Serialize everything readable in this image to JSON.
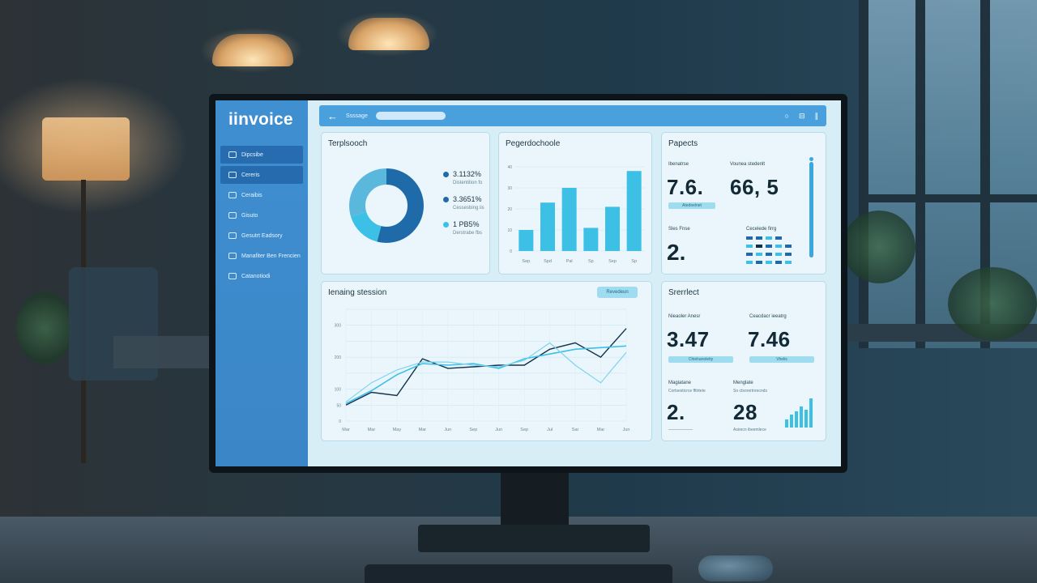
{
  "app": {
    "brand": "iinvoice",
    "top_label": "Ssssage"
  },
  "sidebar": {
    "items": [
      {
        "label": "Dipcsibe",
        "active": true
      },
      {
        "label": "Cereris",
        "active": true
      },
      {
        "label": "Ceraibis",
        "active": false
      },
      {
        "label": "Gisuto",
        "active": false
      },
      {
        "label": "Gesutrt Eadsory",
        "active": false
      },
      {
        "label": "Manafiter Ben Frencien",
        "active": false
      },
      {
        "label": "Catanotiodi",
        "active": false
      }
    ]
  },
  "donut_card": {
    "title": "Terplsooch",
    "legend": [
      {
        "value": "3.1132%",
        "sub": "Distentition fo",
        "color": "#1f6aa8"
      },
      {
        "value": "3.3651%",
        "sub": "Cessesbing iis",
        "color": "#1f6aa8"
      },
      {
        "value": "1 PB5%",
        "sub": "Derstrabe fbs",
        "color": "#3cc0e6"
      }
    ]
  },
  "bar_card": {
    "title": "Pegerdochoole"
  },
  "stats_card": {
    "title": "Papects",
    "labels": [
      "Ibenatrse",
      "Vounea stedenlt",
      "Sles Fnse",
      "Cecelede firrg"
    ],
    "big1": "7.6.",
    "big2": "66, 5",
    "med": "2.",
    "pill": "Atedeelnet"
  },
  "line_card": {
    "title": "Ienaing stession",
    "chip": "Revedeun"
  },
  "stats_card2": {
    "title": "Srerrlect",
    "labels": [
      "Nieaoler Anesr",
      "Ceacdacr ieeatrg",
      "Magiatane",
      "Menglate"
    ],
    "v1": "3.47",
    "v2": "7.46",
    "v3": "2.",
    "v4": "28",
    "pill1": "Chiehanoletiy",
    "pill2": "Vhelis",
    "sub3": "Cortsesticrce ffitrtete",
    "sub4": "So ctsorertnrecnds",
    "sub4b": "Asirecn ibeemlece"
  },
  "chart_data": [
    {
      "type": "pie",
      "title": "Terplsooch",
      "categories": [
        "3.1132%",
        "3.3651%",
        "1 PB5%"
      ],
      "values": [
        54,
        16,
        30
      ],
      "colors": [
        "#1f6aa8",
        "#3cc0e6",
        "#5bb8dd"
      ]
    },
    {
      "type": "bar",
      "title": "Pegerdochoole",
      "categories": [
        "Sep",
        "Spd",
        "Pal",
        "Sp",
        "Sep",
        "Sp"
      ],
      "values": [
        10,
        23,
        30,
        11,
        21,
        38
      ],
      "ylim": [
        0,
        40
      ]
    },
    {
      "type": "line",
      "title": "Ienaing stession",
      "categories": [
        "Mar",
        "Mar",
        "May",
        "Mar",
        "Jun",
        "Sep",
        "Jun",
        "Sep",
        "Jul",
        "Sar",
        "Mar",
        "Jun"
      ],
      "series": [
        {
          "values": [
            50,
            90,
            80,
            195,
            165,
            170,
            175,
            175,
            225,
            245,
            200,
            290
          ]
        },
        {
          "values": [
            55,
            95,
            145,
            180,
            175,
            180,
            165,
            195,
            210,
            225,
            230,
            235
          ]
        },
        {
          "values": [
            60,
            120,
            160,
            185,
            185,
            175,
            170,
            190,
            245,
            175,
            120,
            215
          ]
        }
      ],
      "ylim": [
        0,
        350
      ]
    }
  ]
}
